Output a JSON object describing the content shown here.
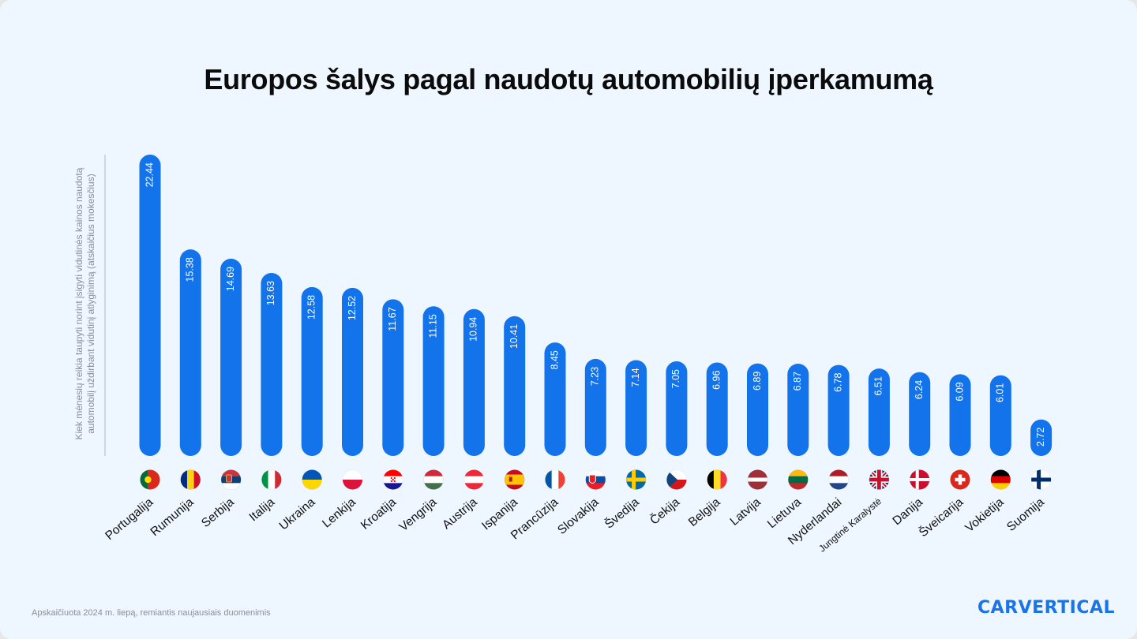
{
  "title": "Europos šalys pagal naudotų automobilių įperkamumą",
  "footnote": "Apskaičiuota 2024 m. liepą, remiantis naujausiais duomenimis",
  "logo": "CARVERTICAL",
  "colors": {
    "bar": "#1273eb",
    "background": "#eef6ff",
    "logo": "#1a73e8"
  },
  "chart_data": {
    "type": "bar",
    "title": "Europos šalys pagal naudotų automobilių įperkamumą",
    "xlabel": "",
    "ylabel": "Kiek mėnesių reikia taupyti norint įsigyti vidutinės kainos naudotą automobilį uždirbant vidutinį atlyginimą (atskaičius mokesčius)",
    "ylim": [
      0,
      22.44
    ],
    "grid": false,
    "categories": [
      "Portugalija",
      "Rumunija",
      "Serbija",
      "Italija",
      "Ukraina",
      "Lenkija",
      "Kroatija",
      "Vengrija",
      "Austrija",
      "Ispanija",
      "Prancūzija",
      "Slovakija",
      "Švedija",
      "Čekija",
      "Belgija",
      "Latvija",
      "Lietuva",
      "Nyderlandai",
      "Jungtinė Karalystė",
      "Danija",
      "Šveicarija",
      "Vokietija",
      "Suomija"
    ],
    "values": [
      22.44,
      15.38,
      14.69,
      13.63,
      12.58,
      12.52,
      11.67,
      11.15,
      10.94,
      10.41,
      8.45,
      7.23,
      7.14,
      7.05,
      6.96,
      6.89,
      6.87,
      6.78,
      6.51,
      6.24,
      6.09,
      6.01,
      2.72
    ],
    "value_labels": [
      "22.44",
      "15.38",
      "14.69",
      "13.63",
      "12.58",
      "12.52",
      "11.67",
      "11.15",
      "10.94",
      "10.41",
      "8.45",
      "7.23",
      "7.14",
      "7.05",
      "6.96",
      "6.89",
      "6.87",
      "6.78",
      "6.51",
      "6.24",
      "6.09",
      "6.01",
      "2.72"
    ],
    "flags": [
      "portugal-flag-icon",
      "romania-flag-icon",
      "serbia-flag-icon",
      "italy-flag-icon",
      "ukraine-flag-icon",
      "poland-flag-icon",
      "croatia-flag-icon",
      "hungary-flag-icon",
      "austria-flag-icon",
      "spain-flag-icon",
      "france-flag-icon",
      "slovakia-flag-icon",
      "sweden-flag-icon",
      "czechia-flag-icon",
      "belgium-flag-icon",
      "latvia-flag-icon",
      "lithuania-flag-icon",
      "netherlands-flag-icon",
      "uk-flag-icon",
      "denmark-flag-icon",
      "switzerland-flag-icon",
      "germany-flag-icon",
      "finland-flag-icon"
    ]
  }
}
